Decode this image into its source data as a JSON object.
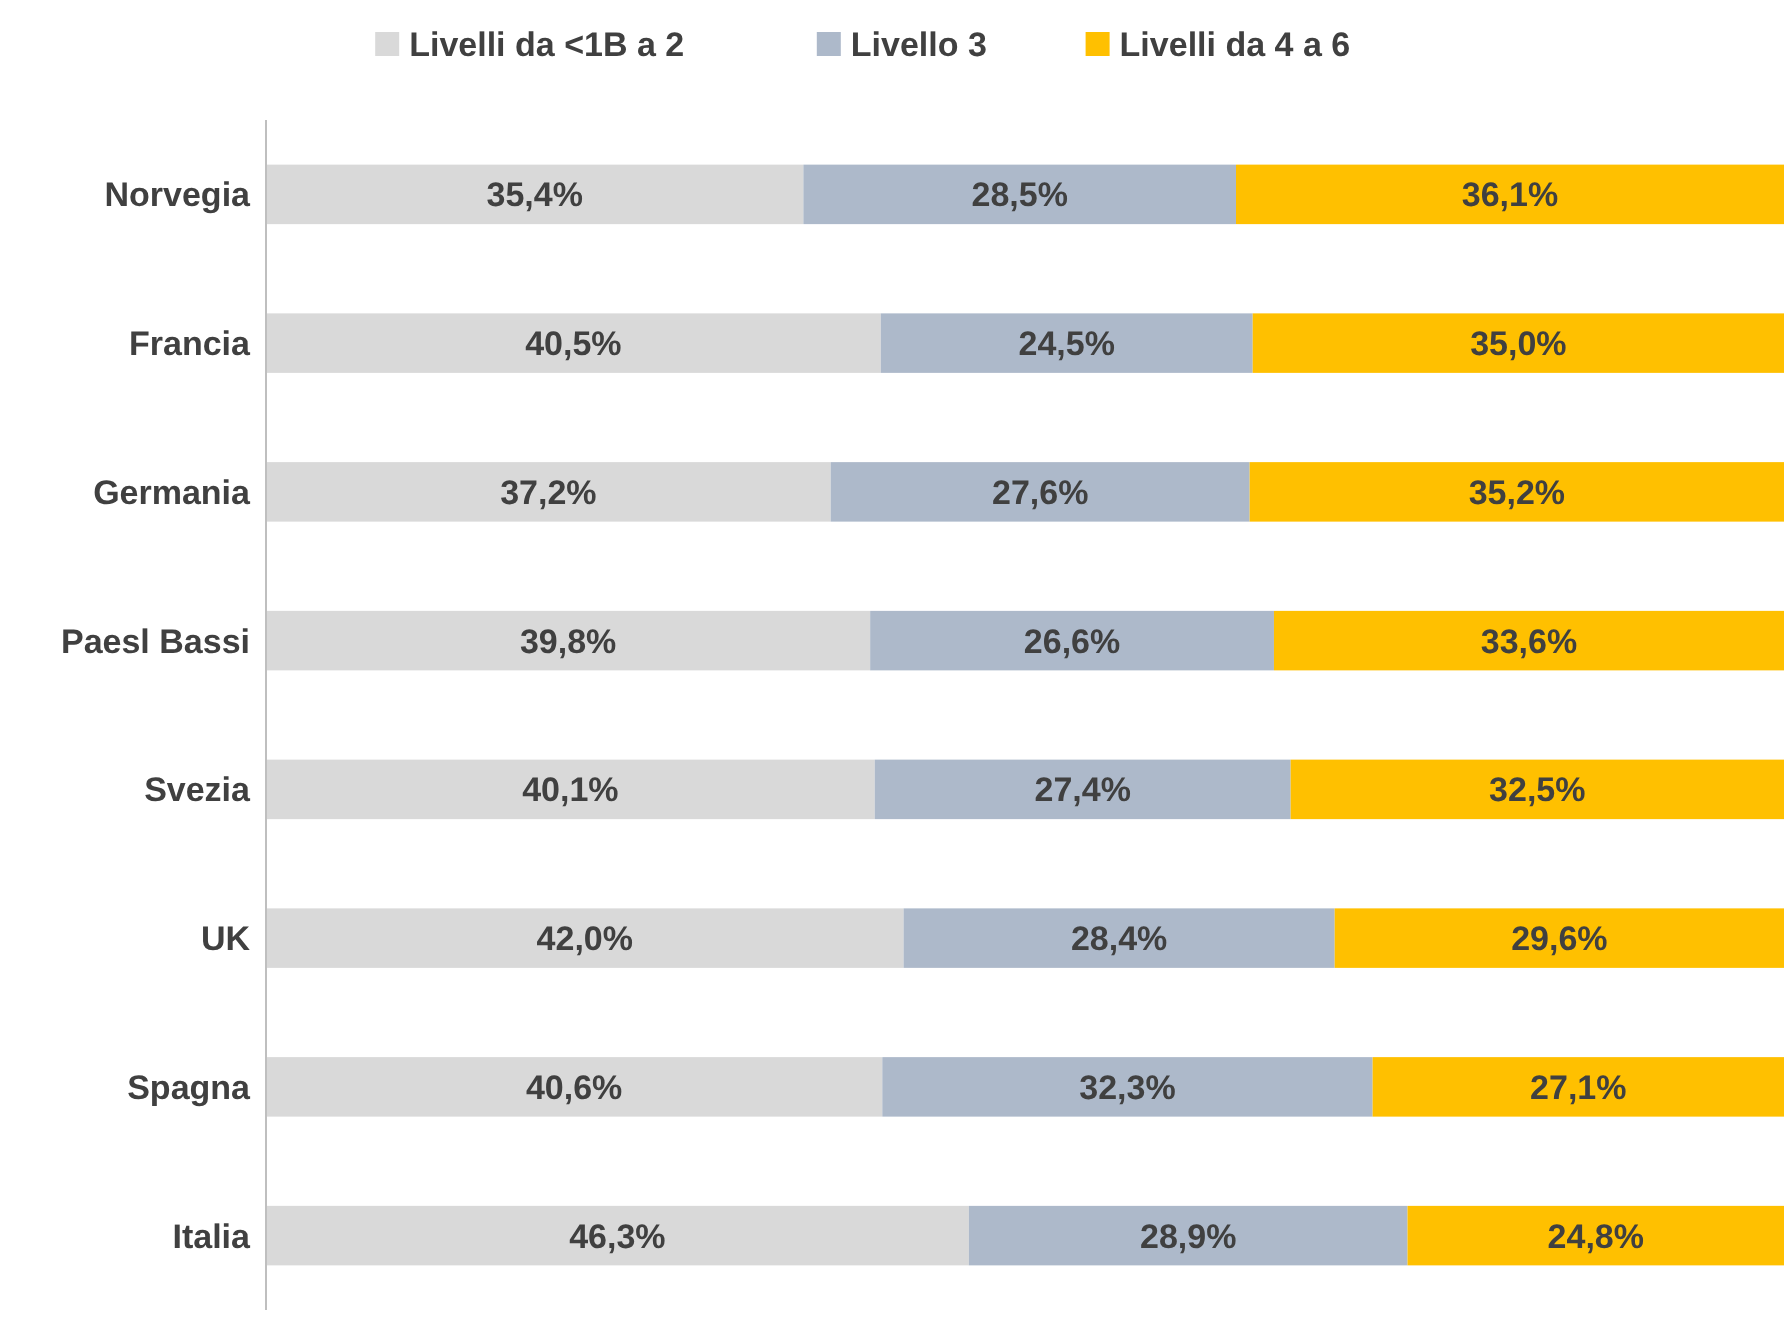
{
  "chart_data": {
    "type": "bar",
    "orientation": "horizontal",
    "stacked": true,
    "legend": "top",
    "tick_labels": "y",
    "xlim": [
      0,
      100
    ],
    "categories": [
      "Norvegia",
      "Francia",
      "Germania",
      "Paesl Bassi",
      "Svezia",
      "UK",
      "Spagna",
      "Italia"
    ],
    "series": [
      {
        "name": "Livelli da <1B a 2",
        "color": "#d9d9d9",
        "values": [
          35.4,
          40.5,
          37.2,
          39.8,
          40.1,
          42.0,
          40.6,
          46.3
        ],
        "value_labels": [
          "35,4%",
          "40,5%",
          "37,2%",
          "39,8%",
          "40,1%",
          "42,0%",
          "40,6%",
          "46,3%"
        ]
      },
      {
        "name": "Livello 3",
        "color": "#adb9ca",
        "values": [
          28.5,
          24.5,
          27.6,
          26.6,
          27.4,
          28.4,
          32.3,
          28.9
        ],
        "value_labels": [
          "28,5%",
          "24,5%",
          "27,6%",
          "26,6%",
          "27,4%",
          "28,4%",
          "32,3%",
          "28,9%"
        ]
      },
      {
        "name": "Livelli da 4 a 6",
        "color": "#ffc000",
        "values": [
          36.1,
          35.0,
          35.2,
          33.6,
          32.5,
          29.6,
          27.1,
          24.8
        ],
        "value_labels": [
          "36,1%",
          "35,0%",
          "35,2%",
          "33,6%",
          "32,5%",
          "29,6%",
          "27,1%",
          "24,8%"
        ]
      }
    ]
  }
}
